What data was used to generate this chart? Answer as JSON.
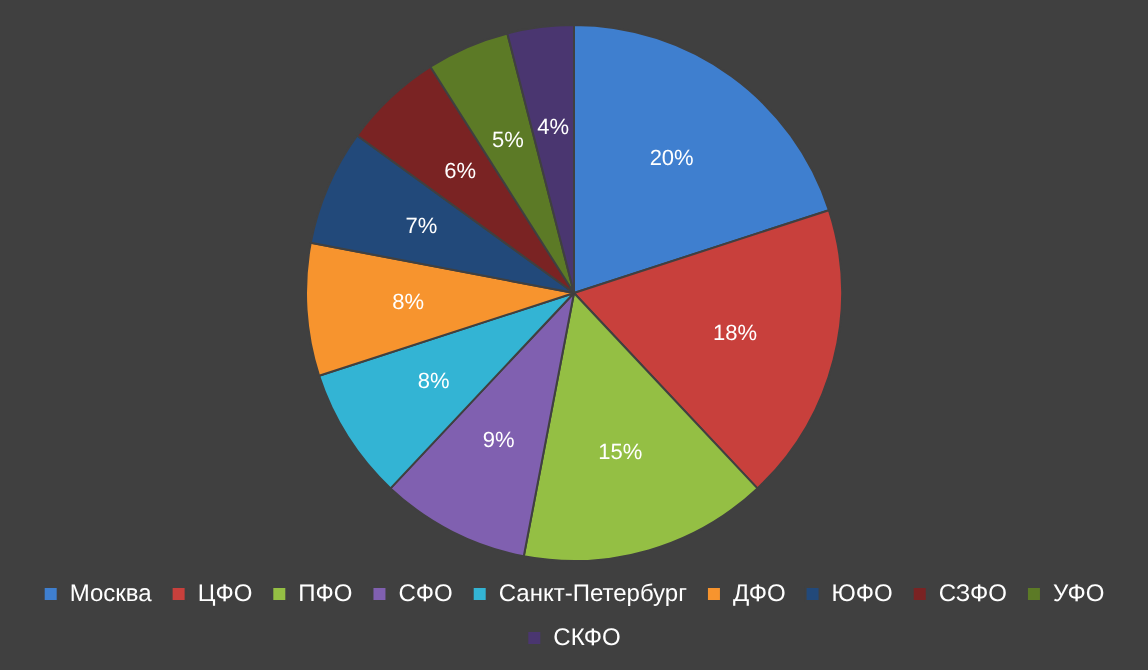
{
  "chart_data": {
    "type": "pie",
    "categories": [
      "Москва",
      "ЦФО",
      "ПФО",
      "СФО",
      "Санкт-Петербург",
      "ДФО",
      "ЮФО",
      "СЗФО",
      "УФО",
      "СКФО"
    ],
    "values": [
      20,
      18,
      15,
      9,
      8,
      8,
      7,
      6,
      5,
      4
    ],
    "colors": [
      "#3f7fcf",
      "#c8403c",
      "#94bf44",
      "#8060b0",
      "#33b4d4",
      "#f7942e",
      "#22497a",
      "#7a2323",
      "#5c7a26",
      "#4a3670"
    ],
    "value_labels": [
      "20%",
      "18%",
      "15%",
      "9%",
      "8%",
      "8%",
      "7%",
      "6%",
      "5%",
      "4%"
    ],
    "legend": "bottom"
  }
}
